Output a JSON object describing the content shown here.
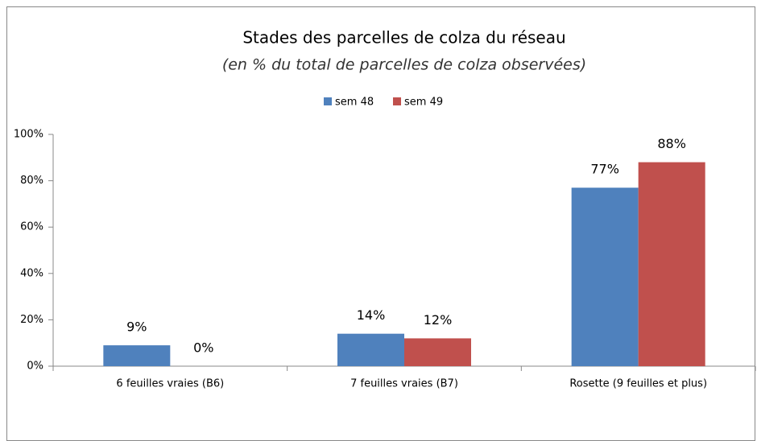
{
  "chart_data": {
    "type": "bar",
    "title": "Stades des parcelles de colza du réseau",
    "subtitle": "(en %  du total de parcelles de colza observées)",
    "categories": [
      "6 feuilles vraies (B6)",
      "7 feuilles vraies (B7)",
      "Rosette (9 feuilles et plus)"
    ],
    "series": [
      {
        "name": "sem 48",
        "color": "#4f81bd",
        "values": [
          9,
          14,
          77
        ],
        "value_labels": [
          "9%",
          "14%",
          "77%"
        ]
      },
      {
        "name": "sem 49",
        "color": "#c0504d",
        "values": [
          0,
          12,
          88
        ],
        "value_labels": [
          "0%",
          "12%",
          "88%"
        ]
      }
    ],
    "ylim": [
      0,
      100
    ],
    "yticks": [
      {
        "value": 0,
        "label": "0%"
      },
      {
        "value": 20,
        "label": "20%"
      },
      {
        "value": 40,
        "label": "40%"
      },
      {
        "value": 60,
        "label": "60%"
      },
      {
        "value": 80,
        "label": "80%"
      },
      {
        "value": 100,
        "label": "100%"
      }
    ],
    "legend": "top",
    "grid": false
  }
}
